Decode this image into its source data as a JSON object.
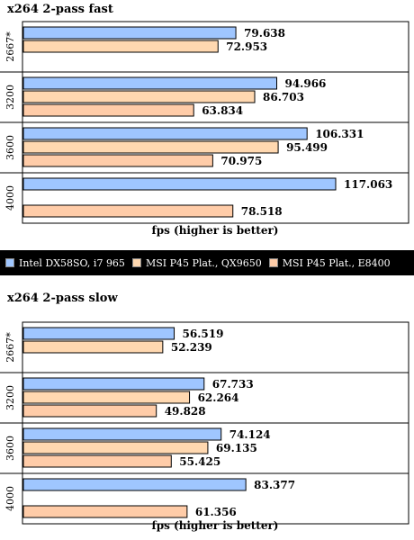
{
  "legend": [
    {
      "label": "Intel DX58SO, i7 965",
      "color": "#9fc6ff"
    },
    {
      "label": "MSI P45 Plat., QX9650",
      "color": "#ffd8b0"
    },
    {
      "label": "MSI P45 Plat., E8400",
      "color": "#ffcca8"
    }
  ],
  "chart_data": [
    {
      "type": "bar",
      "orientation": "horizontal",
      "title": "x264 2-pass fast",
      "xlabel": "fps (higher is better)",
      "categories": [
        "2667*",
        "3200",
        "3600",
        "4000"
      ],
      "xlim": [
        0,
        140
      ],
      "grid": false,
      "legend_position": "bottom",
      "series": [
        {
          "name": "Intel DX58SO, i7 965",
          "values": [
            79.638,
            94.966,
            106.331,
            117.063
          ]
        },
        {
          "name": "MSI P45 Plat., QX9650",
          "values": [
            72.953,
            86.703,
            95.499,
            null
          ]
        },
        {
          "name": "MSI P45 Plat., E8400",
          "values": [
            null,
            63.834,
            70.975,
            78.518
          ]
        }
      ],
      "value_labels": [
        [
          "79.638",
          "72.953",
          null
        ],
        [
          "94.966",
          "86.703",
          "63.834"
        ],
        [
          "106.331",
          "95.499",
          "70.975"
        ],
        [
          "117.063",
          null,
          "78.518"
        ]
      ]
    },
    {
      "type": "bar",
      "orientation": "horizontal",
      "title": "x264 2-pass slow",
      "xlabel": "fps (higher is better)",
      "categories": [
        "2667*",
        "3200",
        "3600",
        "4000"
      ],
      "xlim": [
        0,
        140
      ],
      "grid": false,
      "legend_position": "top",
      "series": [
        {
          "name": "Intel DX58SO, i7 965",
          "values": [
            56.519,
            67.733,
            74.124,
            83.377
          ]
        },
        {
          "name": "MSI P45 Plat., QX9650",
          "values": [
            52.239,
            62.264,
            69.135,
            null
          ]
        },
        {
          "name": "MSI P45 Plat., E8400",
          "values": [
            null,
            49.828,
            55.425,
            61.356
          ]
        }
      ],
      "value_labels": [
        [
          "56.519",
          "52.239",
          null
        ],
        [
          "67.733",
          "62.264",
          "49.828"
        ],
        [
          "74.124",
          "69.135",
          "55.425"
        ],
        [
          "83.377",
          null,
          "61.356"
        ]
      ]
    }
  ]
}
